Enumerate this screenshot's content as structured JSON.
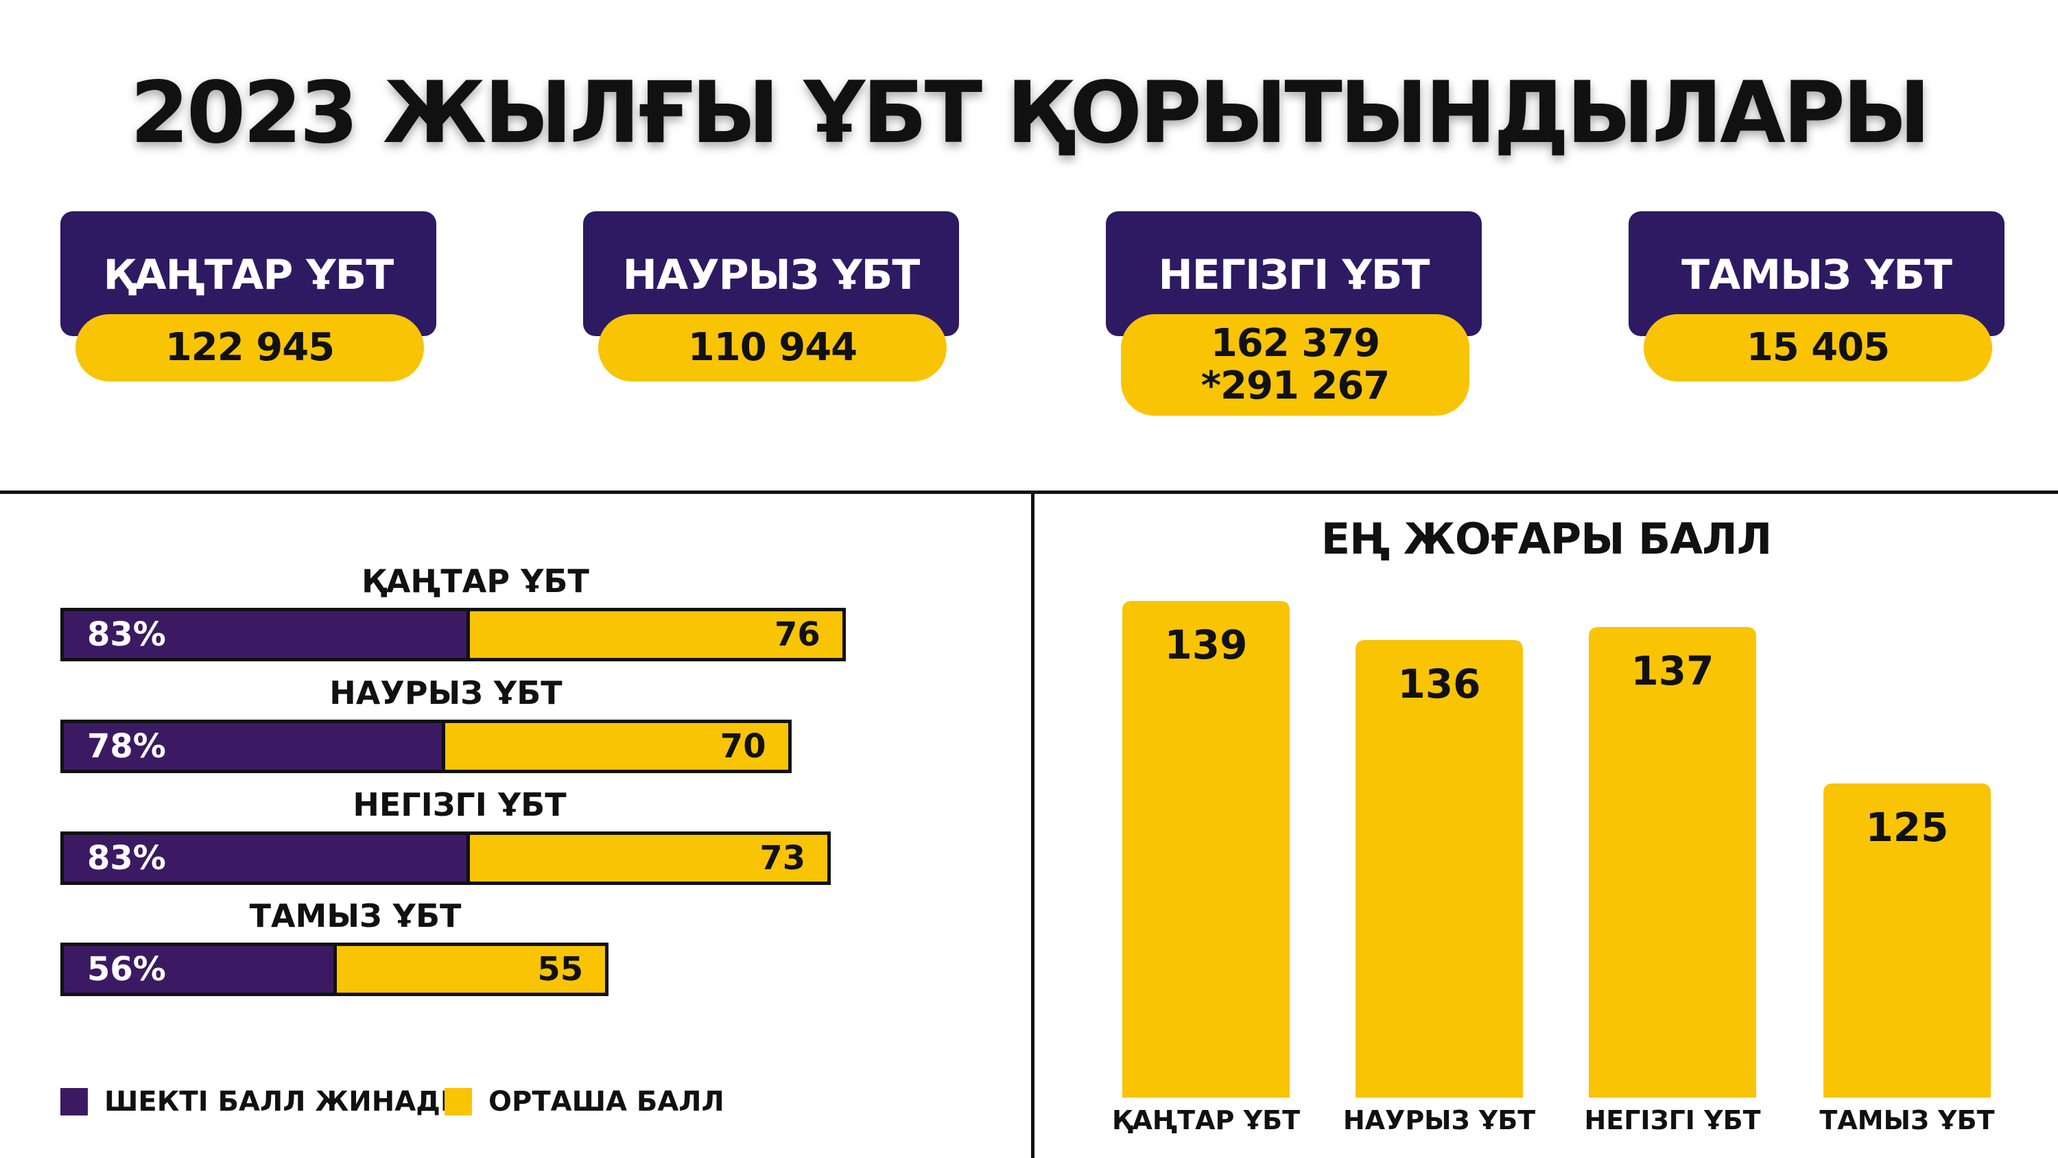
{
  "title": "2023 ЖЫЛҒЫ ҰБТ ҚОРЫТЫНДЫЛАРЫ",
  "colors": {
    "purple_dark": "#2e1a63",
    "purple": "#3b1a63",
    "yellow": "#f9c404"
  },
  "cards": [
    {
      "label": "ҚАҢТАР ҰБТ",
      "value": "122 945"
    },
    {
      "label": "НАУРЫЗ ҰБТ",
      "value": "110 944"
    },
    {
      "label": "НЕГІЗГІ ҰБТ",
      "value": "162 379",
      "value2": "*291 267"
    },
    {
      "label": "ТАМЫЗ ҰБТ",
      "value": "15 405"
    }
  ],
  "chart_data": [
    {
      "type": "bar",
      "orientation": "horizontal",
      "categories": [
        "ҚАҢТАР ҰБТ",
        "НАУРЫЗ ҰБТ",
        "НЕГІЗГІ ҰБТ",
        "ТАМЫЗ ҰБТ"
      ],
      "series": [
        {
          "name": "ШЕКТІ БАЛЛ ЖИНАДЫ",
          "values": [
            83,
            78,
            83,
            56
          ],
          "labels": [
            "83%",
            "78%",
            "83%",
            "56%"
          ]
        },
        {
          "name": "ОРТАША БАЛЛ",
          "values": [
            76,
            70,
            73,
            55
          ],
          "labels": [
            "76",
            "70",
            "73",
            "55"
          ]
        }
      ],
      "legend": "bottom-left"
    },
    {
      "type": "bar",
      "title": "ЕҢ ЖОҒАРЫ БАЛЛ",
      "categories": [
        "ҚАҢТАР ҰБТ",
        "НАУРЫЗ ҰБТ",
        "НЕГІЗГІ ҰБТ",
        "ТАМЫЗ ҰБТ"
      ],
      "values": [
        139,
        136,
        137,
        125
      ],
      "labels": [
        "139",
        "136",
        "137",
        "125"
      ]
    }
  ]
}
